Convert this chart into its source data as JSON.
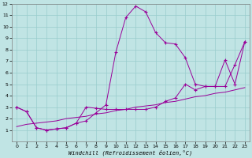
{
  "xlabel": "Windchill (Refroidissement éolien,°C)",
  "xlim": [
    -0.5,
    23.5
  ],
  "ylim": [
    0,
    12
  ],
  "xticks": [
    0,
    1,
    2,
    3,
    4,
    5,
    6,
    7,
    8,
    9,
    10,
    11,
    12,
    13,
    14,
    15,
    16,
    17,
    18,
    19,
    20,
    21,
    22,
    23
  ],
  "yticks": [
    1,
    2,
    3,
    4,
    5,
    6,
    7,
    8,
    9,
    10,
    11,
    12
  ],
  "bg_color": "#c0e4e4",
  "line_color": "#990099",
  "grid_color": "#98cccc",
  "line1_x": [
    0,
    1,
    2,
    3,
    4,
    5,
    6,
    7,
    8,
    9,
    10,
    11,
    12,
    13,
    14,
    15,
    16,
    17,
    18,
    19,
    20,
    21,
    22,
    23
  ],
  "line1_y": [
    3.0,
    2.6,
    1.2,
    1.0,
    1.1,
    1.2,
    1.6,
    1.8,
    2.5,
    3.2,
    7.8,
    10.8,
    11.8,
    11.3,
    9.5,
    8.6,
    8.5,
    7.3,
    5.0,
    4.8,
    4.8,
    7.1,
    5.0,
    8.7
  ],
  "line2_x": [
    0,
    1,
    2,
    3,
    4,
    5,
    6,
    7,
    8,
    9,
    10,
    11,
    12,
    13,
    14,
    15,
    16,
    17,
    18,
    19,
    20,
    21,
    22,
    23
  ],
  "line2_y": [
    3.0,
    2.6,
    1.2,
    1.0,
    1.1,
    1.2,
    1.6,
    3.0,
    2.9,
    2.8,
    2.8,
    2.8,
    2.8,
    2.8,
    3.0,
    3.5,
    3.8,
    5.0,
    4.5,
    4.8,
    4.8,
    4.8,
    6.7,
    8.7
  ],
  "line3_x": [
    0,
    1,
    2,
    3,
    4,
    5,
    6,
    7,
    8,
    9,
    10,
    11,
    12,
    13,
    14,
    15,
    16,
    17,
    18,
    19,
    20,
    21,
    22,
    23
  ],
  "line3_y": [
    1.3,
    1.5,
    1.6,
    1.7,
    1.8,
    2.0,
    2.1,
    2.2,
    2.4,
    2.5,
    2.7,
    2.8,
    3.0,
    3.1,
    3.2,
    3.4,
    3.5,
    3.7,
    3.9,
    4.0,
    4.2,
    4.3,
    4.5,
    4.7
  ],
  "figsize": [
    3.2,
    2.0
  ],
  "dpi": 100
}
